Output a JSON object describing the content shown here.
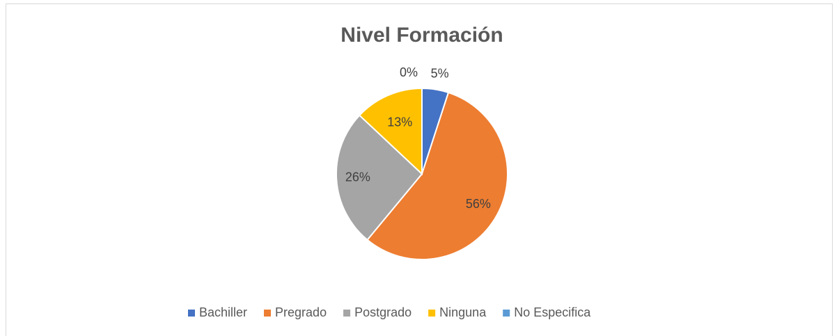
{
  "chart_data": {
    "type": "pie",
    "title": "Nivel Formación",
    "categories": [
      "Bachiller",
      "Pregrado",
      "Postgrado",
      "Ninguna",
      "No Especifica"
    ],
    "values": [
      5,
      56,
      26,
      13,
      0
    ],
    "value_labels": [
      "5%",
      "56%",
      "26%",
      "13%",
      "0%"
    ],
    "colors": [
      "#4472c4",
      "#ed7d31",
      "#a5a5a5",
      "#ffc000",
      "#5b9bd5"
    ],
    "legend": "bottom"
  }
}
